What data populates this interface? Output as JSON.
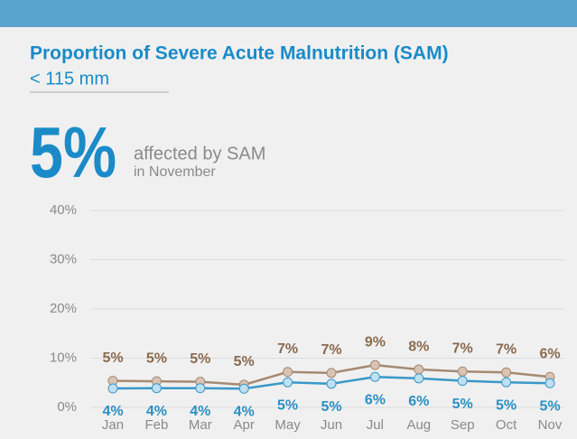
{
  "chart_data": {
    "type": "line",
    "title": "Proportion of Severe Acute Malnutrition (SAM)",
    "subtitle": "< 115 mm",
    "highlight": {
      "value": "5%",
      "label": "affected by SAM",
      "period": "in November"
    },
    "categories": [
      "Jan",
      "Feb",
      "Mar",
      "Apr",
      "May",
      "Jun",
      "Jul",
      "Aug",
      "Sep",
      "Oct",
      "Nov"
    ],
    "series": [
      {
        "color": "#a58a72",
        "marker_fill": "#d9c3b3",
        "values": [
          5.4,
          5.3,
          5.2,
          4.6,
          7.2,
          7.0,
          8.6,
          7.7,
          7.3,
          7.1,
          6.2
        ],
        "value_labels": [
          "5%",
          "5%",
          "5%",
          "5%",
          "7%",
          "7%",
          "9%",
          "8%",
          "7%",
          "7%",
          "6%"
        ],
        "label_position": "above",
        "label_color": "#8a6a4e"
      },
      {
        "color": "#3a98c8",
        "marker_fill": "#bfe0f2",
        "values": [
          3.85,
          3.9,
          3.9,
          3.8,
          5.1,
          4.8,
          6.2,
          5.9,
          5.4,
          5.1,
          4.9
        ],
        "value_labels": [
          "4%",
          "4%",
          "4%",
          "4%",
          "5%",
          "5%",
          "6%",
          "6%",
          "5%",
          "5%",
          "5%"
        ],
        "label_position": "below",
        "label_color": "#2a90c4"
      }
    ],
    "ylim": [
      0,
      40
    ],
    "yticks": [
      {
        "value": 0,
        "label": "0%"
      },
      {
        "value": 10,
        "label": "10%"
      },
      {
        "value": 20,
        "label": "20%"
      },
      {
        "value": 30,
        "label": "30%"
      },
      {
        "value": 40,
        "label": "40%"
      }
    ],
    "grid": true
  }
}
